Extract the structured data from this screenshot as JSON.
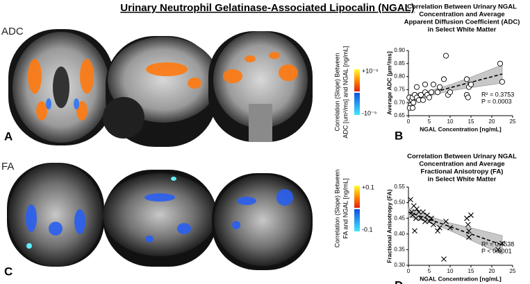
{
  "title": "Urinary Neutrophil Gelatinase-Associated Lipocalin (NGAL)",
  "panels": [
    {
      "letter": "A",
      "modality": "ADC",
      "colorbar_label": [
        "Correlation (Slope) Between",
        "ADC [um²/ms] and NGAL [ng/mL]"
      ],
      "colorbar_max": "+10⁻⁵",
      "colorbar_min": "-10⁻⁵"
    },
    {
      "letter": "C",
      "modality": "FA",
      "colorbar_label": [
        "Correlation (Slope) Between",
        "FA and NGAL [ng/mL]"
      ],
      "colorbar_max": "+0.1",
      "colorbar_min": "-0.1"
    }
  ],
  "chart_data": [
    {
      "type": "scatter",
      "panel": "B",
      "marker": "circle",
      "color": "#000000",
      "title": [
        "Correlation Between Urinary NGAL",
        "Concentration and Average",
        "Apparent Diffusion Coefficient (ADC)",
        "in Select White Matter"
      ],
      "x_label": "NGAL Concentration [ng/mL]",
      "y_label": "Average ADC [µm²/ms]",
      "x": [
        0.2,
        0.5,
        0.8,
        1,
        1.2,
        1.5,
        2,
        2,
        2.5,
        3,
        3.5,
        4,
        4,
        4.5,
        5,
        5.5,
        6,
        7,
        7.5,
        8.5,
        9,
        9.5,
        10,
        14,
        14,
        14.3,
        14.5,
        15,
        22,
        22.5,
        0.3,
        1
      ],
      "values": [
        0.72,
        0.69,
        0.71,
        0.72,
        0.7,
        0.73,
        0.76,
        0.72,
        0.71,
        0.73,
        0.71,
        0.74,
        0.77,
        0.73,
        0.72,
        0.74,
        0.77,
        0.74,
        0.76,
        0.79,
        0.88,
        0.73,
        0.74,
        0.79,
        0.73,
        0.72,
        0.76,
        0.77,
        0.85,
        0.78,
        0.68,
        0.68
      ],
      "fit": {
        "x": [
          0,
          22.5
        ],
        "values": [
          0.715,
          0.81
        ]
      },
      "band": {
        "x": [
          0,
          5,
          10,
          15,
          22.5
        ],
        "lower": [
          0.7,
          0.726,
          0.745,
          0.758,
          0.775
        ],
        "upper": [
          0.73,
          0.746,
          0.769,
          0.798,
          0.845
        ]
      },
      "xlim": [
        0,
        25
      ],
      "xticks": [
        0,
        5,
        10,
        15,
        20,
        25
      ],
      "ylim": [
        0.65,
        0.9
      ],
      "yticks": [
        {
          "value": 0.65,
          "label": "0.65"
        },
        {
          "value": 0.7,
          "label": "0.70"
        },
        {
          "value": 0.75,
          "label": "0.75"
        },
        {
          "value": 0.8,
          "label": "0.80"
        },
        {
          "value": 0.85,
          "label": "0.85"
        },
        {
          "value": 0.9,
          "label": "0.90"
        }
      ],
      "annotations": [
        "R² = 0.3753",
        "P = 0.0003"
      ]
    },
    {
      "type": "scatter",
      "panel": "D",
      "marker": "x",
      "color": "#000000",
      "title": [
        "Correlation Between Urinary NGAL",
        "Concentration and Average",
        "Fractional Anisotropy (FA)",
        "in Select White Matter"
      ],
      "x_label": "NGAL Concentration [ng/mL]",
      "y_label": "Fractional Anisotropy (FA)",
      "x": [
        0.5,
        0.8,
        1,
        1.3,
        1.5,
        1.8,
        2,
        2.5,
        3,
        3.5,
        4,
        4.5,
        5,
        5.5,
        6,
        7,
        7.5,
        8.5,
        9,
        10,
        14,
        14.3,
        14.5,
        14.5,
        15,
        21.5,
        22.5
      ],
      "values": [
        0.51,
        0.47,
        0.46,
        0.49,
        0.41,
        0.45,
        0.48,
        0.47,
        0.45,
        0.47,
        0.44,
        0.46,
        0.44,
        0.45,
        0.43,
        0.41,
        0.42,
        0.32,
        0.44,
        0.42,
        0.45,
        0.43,
        0.41,
        0.39,
        0.46,
        0.35,
        0.37
      ],
      "fit": {
        "x": [
          0,
          22.5
        ],
        "values": [
          0.47,
          0.365
        ]
      },
      "band": {
        "x": [
          0,
          5,
          10,
          15,
          22.5
        ],
        "lower": [
          0.455,
          0.437,
          0.411,
          0.38,
          0.335
        ],
        "upper": [
          0.485,
          0.457,
          0.435,
          0.42,
          0.395
        ]
      },
      "xlim": [
        0,
        25
      ],
      "xticks": [
        0,
        5,
        10,
        15,
        20,
        25
      ],
      "ylim": [
        0.3,
        0.55
      ],
      "yticks": [
        {
          "value": 0.3,
          "label": "0.30"
        },
        {
          "value": 0.35,
          "label": "0.35"
        },
        {
          "value": 0.4,
          "label": "0.40"
        },
        {
          "value": 0.45,
          "label": "0.45"
        },
        {
          "value": 0.5,
          "label": "0.50"
        },
        {
          "value": 0.55,
          "label": "0.55"
        }
      ],
      "annotations": [
        "R² = 0.4538",
        "P < 0.0001"
      ]
    }
  ]
}
